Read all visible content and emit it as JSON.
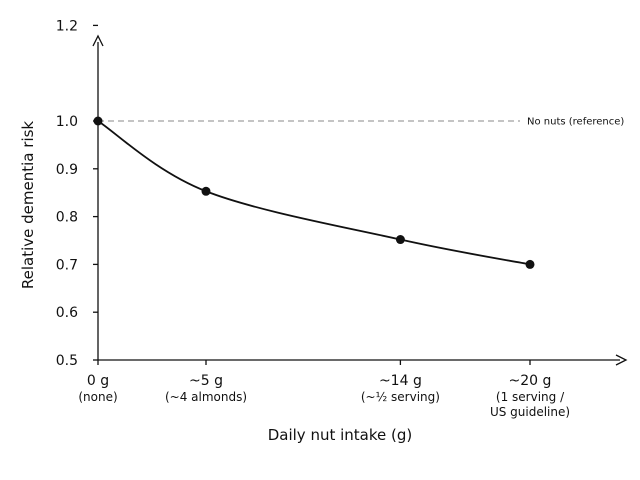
{
  "chart_data": {
    "type": "line",
    "title": "",
    "xlabel": "Daily nut intake (g)",
    "ylabel": "Relative dementia risk",
    "ylim": [
      0.5,
      1.25
    ],
    "yticks": [
      "0.5",
      "0.6",
      "0.7",
      "0.8",
      "0.9",
      "1.0",
      "1.2"
    ],
    "ytick_values": [
      0.5,
      0.6,
      0.7,
      0.8,
      0.9,
      1.0,
      1.2
    ],
    "categories": [
      {
        "main": "0 g",
        "sub": [
          "(none)"
        ]
      },
      {
        "main": "~5 g",
        "sub": [
          "(~4 almonds)"
        ]
      },
      {
        "main": "~14 g",
        "sub": [
          "(~½ serving)"
        ]
      },
      {
        "main": "~20 g",
        "sub": [
          "(1 serving /",
          "US guideline)"
        ]
      }
    ],
    "x": [
      0,
      5,
      14,
      20
    ],
    "series": [
      {
        "values": [
          1.0,
          0.853,
          0.752,
          0.7
        ]
      }
    ],
    "reference_line": {
      "value": 1.0,
      "label": "No nuts (reference)",
      "style": "dashed"
    },
    "grid": false,
    "colors": {
      "line": "#111111",
      "reference": "#888888"
    }
  }
}
